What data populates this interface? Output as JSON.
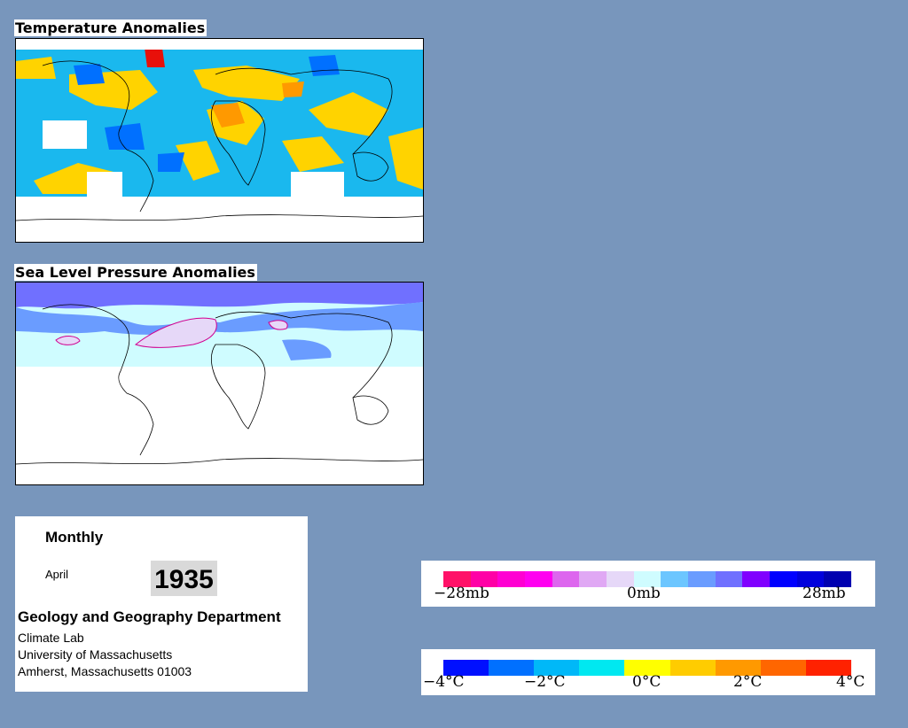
{
  "temperature_map": {
    "title": "Temperature Anomalies"
  },
  "pressure_map": {
    "title": "Sea Level Pressure Anomalies"
  },
  "info": {
    "period": "Monthly",
    "month": "April",
    "year": "1935",
    "department": "Geology and Geography Department",
    "lab": "Climate Lab",
    "university": "University of Massachusetts",
    "address": "Amherst, Massachusetts 01003"
  },
  "pressure_legend": {
    "labels": [
      "−28mb",
      "0mb",
      "28mb"
    ],
    "colors": [
      "#ff1168",
      "#ff00a6",
      "#ff00d2",
      "#ff00f0",
      "#dd66ee",
      "#e0a8f4",
      "#e6d8f8",
      "#cffcff",
      "#6cc6ff",
      "#6a9cff",
      "#7070ff",
      "#8000ff",
      "#0000ff",
      "#0000dc",
      "#0000b0"
    ]
  },
  "temperature_legend": {
    "labels": [
      "−4°C",
      "−2°C",
      "0°C",
      "2°C",
      "4°C"
    ],
    "colors": [
      "#0010ff",
      "#0070ff",
      "#00b8f8",
      "#00e8f0",
      "#ffff00",
      "#ffcc00",
      "#ff9900",
      "#ff6600",
      "#ff2200"
    ]
  }
}
